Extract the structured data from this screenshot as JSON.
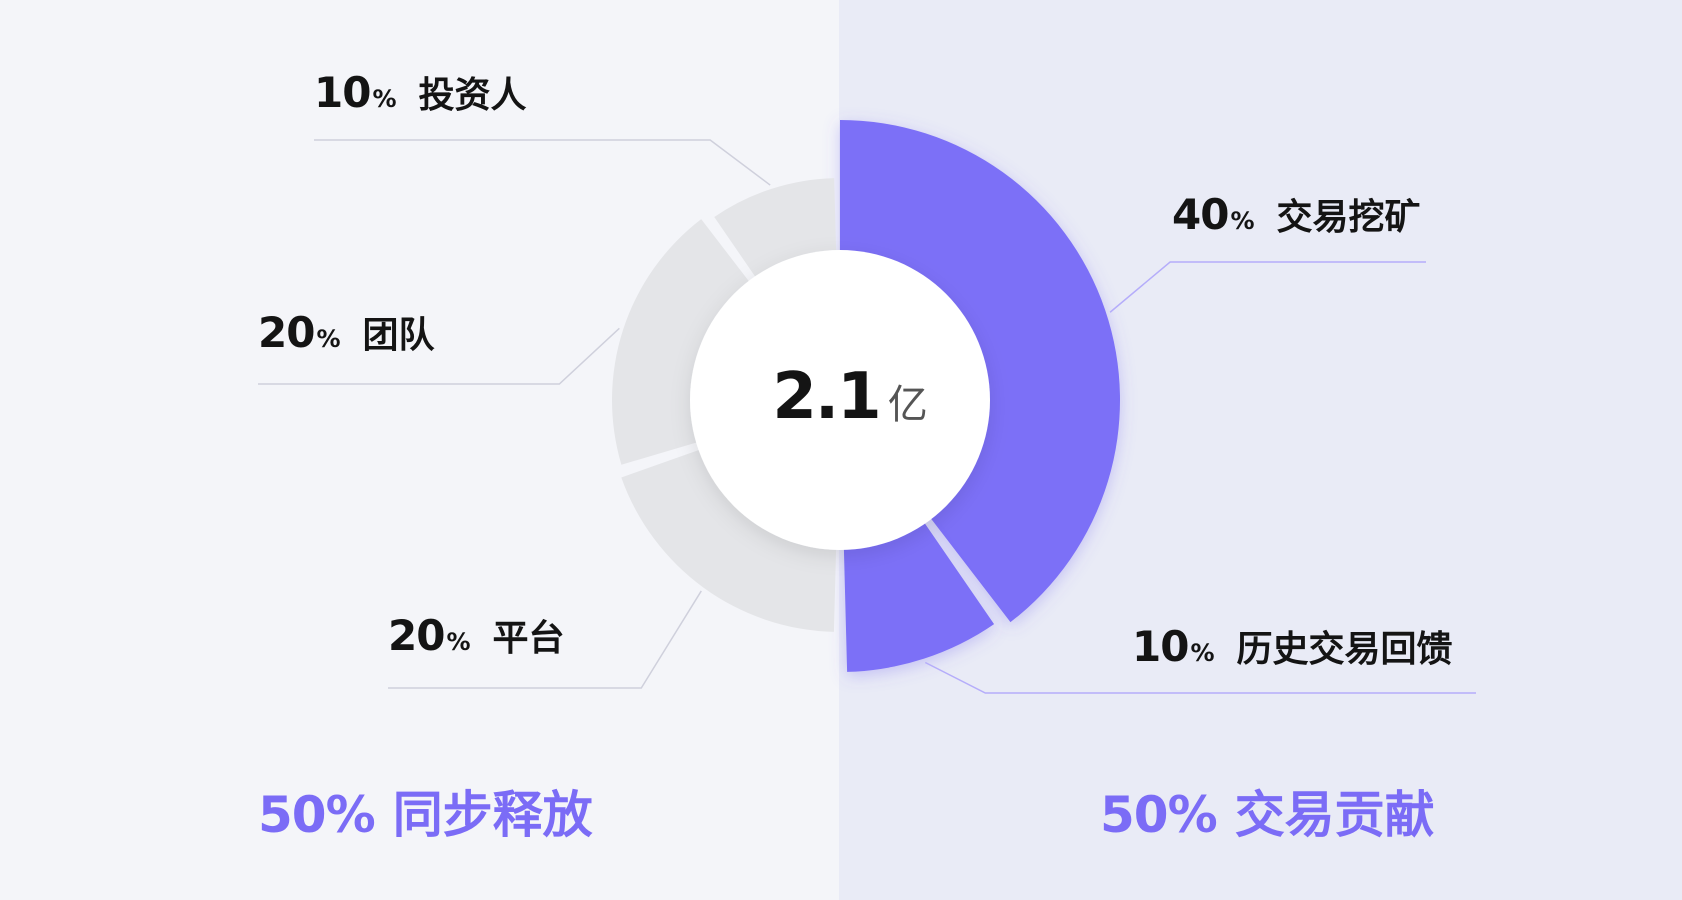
{
  "chart_data": {
    "type": "pie",
    "center": {
      "value": "2.1",
      "unit": "亿"
    },
    "slices": [
      {
        "label": "交易挖矿",
        "percent": "40",
        "value": 40,
        "group": "交易贡献",
        "color": "#7b6ff7"
      },
      {
        "label": "历史交易回馈",
        "percent": "10",
        "value": 10,
        "group": "交易贡献",
        "color": "#7b6ff7"
      },
      {
        "label": "平台",
        "percent": "20",
        "value": 20,
        "group": "同步释放",
        "color": "#e4e5e8"
      },
      {
        "label": "团队",
        "percent": "20",
        "value": 20,
        "group": "同步释放",
        "color": "#e4e5e8"
      },
      {
        "label": "投资人",
        "percent": "10",
        "value": 10,
        "group": "同步释放",
        "color": "#e4e5e8"
      }
    ],
    "unit_symbol": "%",
    "groups": [
      {
        "percent": "50%",
        "label": "同步释放",
        "color": "#7b6cf6"
      },
      {
        "percent": "50%",
        "label": "交易贡献",
        "color": "#7b6cf6"
      }
    ]
  }
}
